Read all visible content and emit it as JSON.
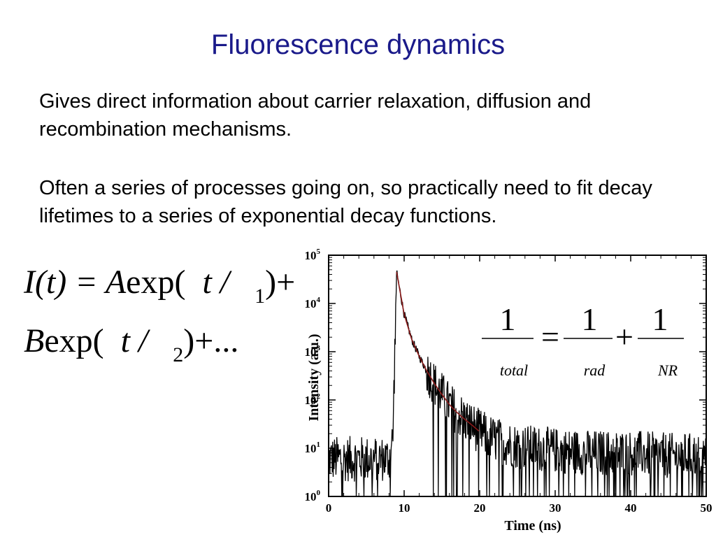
{
  "slide": {
    "title": "Fluorescence dynamics",
    "paragraph1": "Gives direct information about carrier relaxation, diffusion and recombination mechanisms.",
    "paragraph2": "Often a series of processes going on, so practically need to fit decay lifetimes to a series of exponential decay functions."
  },
  "equation": {
    "line1_lhs": "I(t) = ",
    "line1_A": "A",
    "line1_exp": "exp(",
    "line1_t": "t /",
    "line1_sub": "1",
    "line1_tail": ")+",
    "line2_B": "B",
    "line2_exp": "exp(",
    "line2_t": "t /",
    "line2_sub": "2",
    "line2_tail": ")+..."
  },
  "rate_equation": {
    "numerator_total": "1",
    "numerator_rad": "1",
    "numerator_nr": "1",
    "equals": "=",
    "plus": "+",
    "denominator_total": "total",
    "denominator_rad": "rad",
    "denominator_nr": "NR"
  },
  "chart_data": {
    "type": "line",
    "xlabel": "Time (ns)",
    "ylabel": "Intensity (a.u.)",
    "xlim": [
      0,
      50
    ],
    "ylim": [
      1,
      100000
    ],
    "yscale": "log",
    "x_ticks": [
      0,
      10,
      20,
      30,
      40,
      50
    ],
    "y_ticks": [
      {
        "value": 1,
        "base": "10",
        "exp": "0"
      },
      {
        "value": 10,
        "base": "10",
        "exp": "1"
      },
      {
        "value": 100,
        "base": "10",
        "exp": "2"
      },
      {
        "value": 1000,
        "base": "10",
        "exp": "3"
      },
      {
        "value": 10000,
        "base": "10",
        "exp": "4"
      },
      {
        "value": 100000,
        "base": "10",
        "exp": "5"
      }
    ],
    "grid": false,
    "series": [
      {
        "role": "measured",
        "color": "#000000",
        "x": [
          0,
          8.0,
          8.5,
          9.0,
          10,
          11,
          12,
          13,
          14,
          15,
          16,
          17,
          18,
          19,
          20,
          22,
          25,
          30,
          35,
          40,
          45,
          50
        ],
        "y": [
          6,
          6,
          15,
          45000,
          6000,
          1800,
          800,
          400,
          220,
          130,
          80,
          55,
          40,
          30,
          22,
          15,
          11,
          9,
          8,
          8,
          7,
          7
        ]
      },
      {
        "role": "fit",
        "color": "#8b1a1a",
        "x": [
          9.0,
          10,
          11,
          12,
          13,
          14,
          15,
          16,
          17,
          18,
          19,
          20
        ],
        "y": [
          45000,
          6000,
          1800,
          800,
          400,
          220,
          130,
          80,
          55,
          40,
          30,
          22
        ]
      }
    ]
  }
}
